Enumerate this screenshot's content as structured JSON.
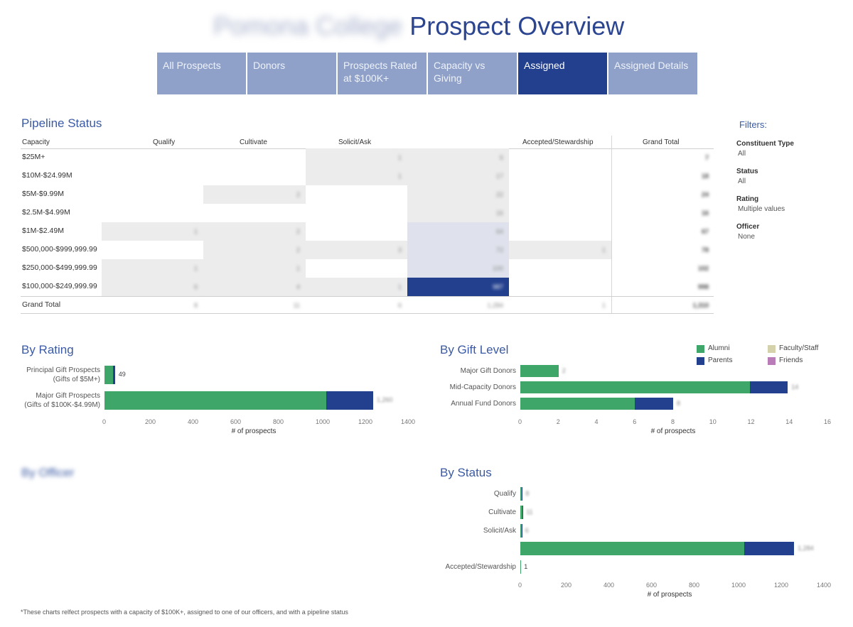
{
  "header": {
    "org_name": "Pomona College",
    "title": "Prospect Overview"
  },
  "tabs": [
    {
      "label": "All Prospects",
      "active": false
    },
    {
      "label": "Donors",
      "active": false
    },
    {
      "label": "Prospects Rated at $100K+",
      "active": false
    },
    {
      "label": "Capacity vs Giving",
      "active": false
    },
    {
      "label": "Assigned",
      "active": true
    },
    {
      "label": "Assigned Details",
      "active": false
    }
  ],
  "pipeline": {
    "title": "Pipeline Status",
    "columns": [
      "Capacity",
      "Qualify",
      "Cultivate",
      "Solicit/Ask",
      "Accepted/Stewardship",
      "Grand Total"
    ],
    "rows": [
      {
        "label": "$25M+",
        "values": [
          "",
          "",
          "1",
          "6",
          ""
        ],
        "total": "7"
      },
      {
        "label": "$10M-$24.99M",
        "values": [
          "",
          "",
          "1",
          "17",
          ""
        ],
        "total": "18"
      },
      {
        "label": "$5M-$9.99M",
        "values": [
          "",
          "2",
          "",
          "22",
          ""
        ],
        "total": "24"
      },
      {
        "label": "$2.5M-$4.99M",
        "values": [
          "",
          "",
          "",
          "16",
          ""
        ],
        "total": "16"
      },
      {
        "label": "$1M-$2.49M",
        "values": [
          "1",
          "2",
          "",
          "64",
          ""
        ],
        "total": "67"
      },
      {
        "label": "$500,000-$999,999.99",
        "values": [
          "",
          "2",
          "3",
          "72",
          "1"
        ],
        "total": "78"
      },
      {
        "label": "$250,000-$499,999.99",
        "values": [
          "1",
          "1",
          "",
          "100",
          ""
        ],
        "total": "102"
      },
      {
        "label": "$100,000-$249,999.99",
        "values": [
          "6",
          "4",
          "1",
          "987",
          ""
        ],
        "total": "998"
      }
    ],
    "grand_total": {
      "label": "Grand Total",
      "values": [
        "8",
        "11",
        "6",
        "1,284",
        "1"
      ],
      "total": "1,310"
    }
  },
  "filters": {
    "title": "Filters:",
    "items": [
      {
        "label": "Constituent Type",
        "value": "All"
      },
      {
        "label": "Status",
        "value": "All"
      },
      {
        "label": "Rating",
        "value": "Multiple values"
      },
      {
        "label": "Officer",
        "value": "None"
      }
    ]
  },
  "legend": {
    "items": [
      {
        "label": "Alumni",
        "color": "#3fa66a"
      },
      {
        "label": "Faculty/Staff",
        "color": "#d4d2aa"
      },
      {
        "label": "Parents",
        "color": "#23408e"
      },
      {
        "label": "Friends",
        "color": "#b97cb9"
      }
    ]
  },
  "by_officer": {
    "title": "By Officer"
  },
  "footnote": "*These charts relfect prospects with a capacity of $100K+, assigned to one of our officers, and with  a pipeline status",
  "chart_data": [
    {
      "id": "by_rating",
      "type": "bar",
      "orientation": "horizontal",
      "stacked": true,
      "title": "By Rating",
      "xlabel": "# of prospects",
      "xlim": [
        0,
        1400
      ],
      "xticks": [
        "0",
        "200",
        "400",
        "600",
        "800",
        "1000",
        "1200",
        "1400"
      ],
      "categories": [
        "Principal Gift Prospects (Gifts of $5M+)",
        "Major Gift Prospects (Gifts of $100K-$4.99M)"
      ],
      "category_lines": [
        [
          "Principal Gift Prospects",
          "(Gifts of $5M+)"
        ],
        [
          "Major Gift Prospects",
          "(Gifts of $100K-$4.99M)"
        ]
      ],
      "series": [
        {
          "name": "Alumni",
          "color": "#3fa66a",
          "values": [
            40,
            1040
          ]
        },
        {
          "name": "Parents",
          "color": "#23408e",
          "values": [
            9,
            220
          ]
        }
      ],
      "data_labels": [
        "49",
        "1,260"
      ],
      "legend": "none"
    },
    {
      "id": "by_gift_level",
      "type": "bar",
      "orientation": "horizontal",
      "stacked": true,
      "title": "By Gift Level",
      "xlabel": "# of prospects",
      "xlim": [
        0,
        16
      ],
      "xticks": [
        "0",
        "2",
        "4",
        "6",
        "8",
        "10",
        "12",
        "14",
        "16"
      ],
      "categories": [
        "Major Gift Donors",
        "Mid-Capacity Donors",
        "Annual Fund Donors"
      ],
      "series": [
        {
          "name": "Alumni",
          "color": "#3fa66a",
          "values": [
            2,
            12,
            6
          ]
        },
        {
          "name": "Parents",
          "color": "#23408e",
          "values": [
            0,
            2,
            2
          ]
        }
      ],
      "data_labels": [
        "2",
        "14",
        "8"
      ],
      "legend": "top-right"
    },
    {
      "id": "by_status",
      "type": "bar",
      "orientation": "horizontal",
      "stacked": true,
      "title": "By Status",
      "xlabel": "# of prospects",
      "xlim": [
        0,
        1400
      ],
      "xticks": [
        "0",
        "200",
        "400",
        "600",
        "800",
        "1000",
        "1200",
        "1400"
      ],
      "categories": [
        "Qualify",
        "Cultivate",
        "Solicit/Ask",
        "",
        "Accepted/Stewardship"
      ],
      "series": [
        {
          "name": "Alumni",
          "color": "#3fa66a",
          "values": [
            7,
            10,
            5,
            1050,
            1
          ]
        },
        {
          "name": "Parents",
          "color": "#23408e",
          "values": [
            1,
            1,
            1,
            234,
            0
          ]
        }
      ],
      "data_labels": [
        "8",
        "11",
        "6",
        "1,284",
        "1"
      ],
      "legend": "none"
    }
  ]
}
